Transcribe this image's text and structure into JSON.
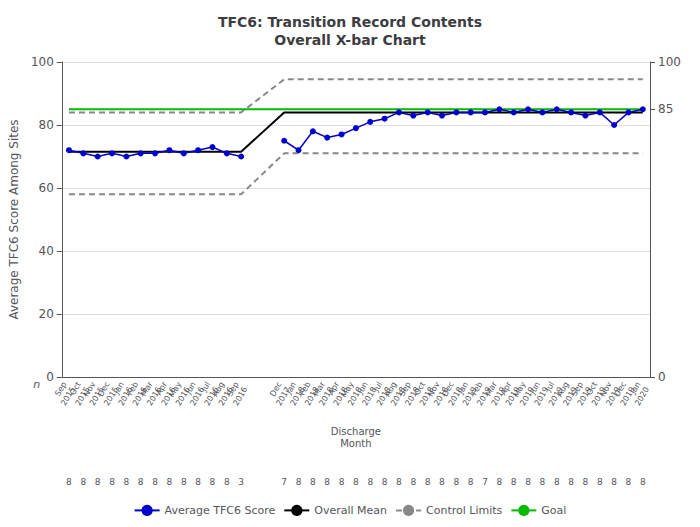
{
  "chart_data": {
    "type": "line",
    "title": "TFC6: Transition Record Contents\nOverall X-bar Chart",
    "xlabel": "Discharge\nMonth",
    "ylabel": "Average TFC6 Score Among Sites",
    "categories": [
      "Sep\n2015",
      "Oct\n2015",
      "Nov\n2015",
      "Dec\n2015",
      "Jan\n2016",
      "Feb\n2016",
      "Mar\n2016",
      "Apr\n2016",
      "May\n2016",
      "Jun\n2016",
      "Jul\n2016",
      "Aug\n2016",
      "Sep\n2016",
      null,
      null,
      "Dec\n2017",
      "Jan\n2018",
      "Feb\n2018",
      "Mar\n2018",
      "Apr\n2018",
      "May\n2018",
      "Jun\n2018",
      "Jul\n2018",
      "Aug\n2018",
      "Sep\n2018",
      "Oct\n2018",
      "Nov\n2018",
      "Dec\n2018",
      "Jan\n2019",
      "Feb\n2019",
      "Mar\n2019",
      "Apr\n2019",
      "May\n2019",
      "Jun\n2019",
      "Jul\n2019",
      "Aug\n2019",
      "Sep\n2019",
      "Oct\n2019",
      "Nov\n2019",
      "Dec\n2019",
      "Jan\n2020"
    ],
    "n_label": "n",
    "n_values": [
      8,
      8,
      8,
      8,
      8,
      8,
      8,
      8,
      8,
      8,
      8,
      8,
      3,
      null,
      null,
      7,
      8,
      8,
      8,
      8,
      8,
      8,
      8,
      8,
      8,
      8,
      8,
      8,
      8,
      7,
      8,
      8,
      8,
      8,
      8,
      8,
      8,
      8,
      8,
      8,
      8
    ],
    "series": [
      {
        "name": "Average TFC6 Score",
        "color": "#0000cc",
        "marker": "circle",
        "line_style": "solid",
        "values": [
          72,
          71,
          70,
          71,
          70,
          71,
          71,
          72,
          71,
          72,
          73,
          71,
          70,
          null,
          null,
          75,
          72,
          78,
          76,
          77,
          79,
          81,
          82,
          84,
          83,
          84,
          83,
          84,
          84,
          84,
          85,
          84,
          85,
          84,
          85,
          84,
          83,
          84,
          80,
          84,
          85
        ]
      },
      {
        "name": "Overall Mean",
        "color": "#000000",
        "marker": "none",
        "line_style": "solid",
        "values": [
          71.5,
          71.5,
          71.5,
          71.5,
          71.5,
          71.5,
          71.5,
          71.5,
          71.5,
          71.5,
          71.5,
          71.5,
          71.5,
          null,
          null,
          84.0,
          84.0,
          84.0,
          84.0,
          84.0,
          84.0,
          84.0,
          84.0,
          84.0,
          84.0,
          84.0,
          84.0,
          84.0,
          84.0,
          84.0,
          84.0,
          84.0,
          84.0,
          84.0,
          84.0,
          84.0,
          84.0,
          84.0,
          84.0,
          84.0,
          84.0
        ]
      },
      {
        "name": "Control Limits",
        "color": "#888888",
        "marker": "none",
        "line_style": "dashed",
        "values": [
          84.0,
          84.0,
          84.0,
          84.0,
          84.0,
          84.0,
          84.0,
          84.0,
          84.0,
          84.0,
          84.0,
          84.0,
          84.0,
          null,
          null,
          94.5,
          94.5,
          94.5,
          94.5,
          94.5,
          94.5,
          94.5,
          94.5,
          94.5,
          94.5,
          94.5,
          94.5,
          94.5,
          94.5,
          94.5,
          94.5,
          94.5,
          94.5,
          94.5,
          94.5,
          94.5,
          94.5,
          94.5,
          94.5,
          94.5,
          94.5
        ]
      },
      {
        "name": "Control Limits",
        "color": "#888888",
        "marker": "none",
        "line_style": "dashed",
        "values": [
          58.0,
          58.0,
          58.0,
          58.0,
          58.0,
          58.0,
          58.0,
          58.0,
          58.0,
          58.0,
          58.0,
          58.0,
          58.0,
          null,
          null,
          71.0,
          71.0,
          71.0,
          71.0,
          71.0,
          71.0,
          71.0,
          71.0,
          71.0,
          71.0,
          71.0,
          71.0,
          71.0,
          71.0,
          71.0,
          71.0,
          71.0,
          71.0,
          71.0,
          71.0,
          71.0,
          71.0,
          71.0,
          71.0,
          71.0,
          71.0
        ]
      },
      {
        "name": "Goal",
        "color": "#00bb00",
        "marker": "none",
        "line_style": "solid",
        "values": [
          85,
          85,
          85,
          85,
          85,
          85,
          85,
          85,
          85,
          85,
          85,
          85,
          85,
          85,
          85,
          85,
          85,
          85,
          85,
          85,
          85,
          85,
          85,
          85,
          85,
          85,
          85,
          85,
          85,
          85,
          85,
          85,
          85,
          85,
          85,
          85,
          85,
          85,
          85,
          85,
          85
        ]
      }
    ],
    "ylim": [
      0,
      100
    ],
    "yticks": [
      0,
      20,
      40,
      60,
      80,
      100
    ],
    "y2lim": [
      0,
      100
    ],
    "y2ticks": [
      0,
      85,
      100
    ],
    "grid": true,
    "legend": "bottom"
  }
}
